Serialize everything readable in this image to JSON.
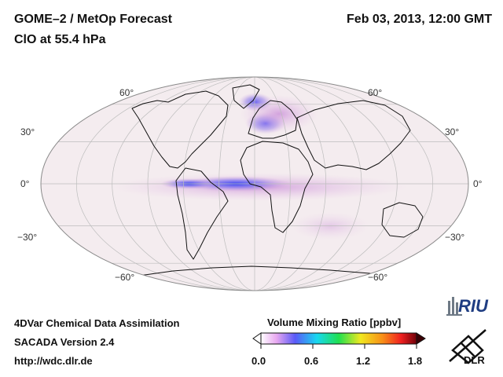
{
  "header": {
    "title_line1": "GOME–2 / MetOp Forecast",
    "title_line2": "ClO at 55.4 hPa",
    "datetime": "Feb 03, 2013, 12:00 GMT"
  },
  "map": {
    "projection": "Mollweide",
    "lat_labels_left": [
      "60°",
      "30°",
      "0°",
      "−30°",
      "−60°"
    ],
    "lat_labels_right": [
      "60°",
      "30°",
      "0°",
      "−30°",
      "−60°"
    ],
    "background_color": "#f4ecef",
    "hotspot_colors": [
      "#d6a6dc",
      "#7a6ff0",
      "#2a3cf4"
    ]
  },
  "footer": {
    "line1": "4DVar Chemical Data Assimilation",
    "line2": "SACADA Version 2.4",
    "line3": "http://wdc.dlr.de"
  },
  "colorbar": {
    "title": "Volume Mixing Ratio [ppbv]",
    "ticks": [
      "0.0",
      "0.6",
      "1.2",
      "1.8"
    ],
    "colors": [
      "#ffffff",
      "#e8a8f0",
      "#5a5af8",
      "#18d8f0",
      "#20e050",
      "#f0e820",
      "#f89018",
      "#f02020",
      "#700008"
    ]
  },
  "logos": {
    "riu": "RIU",
    "dlr": "DLR"
  }
}
